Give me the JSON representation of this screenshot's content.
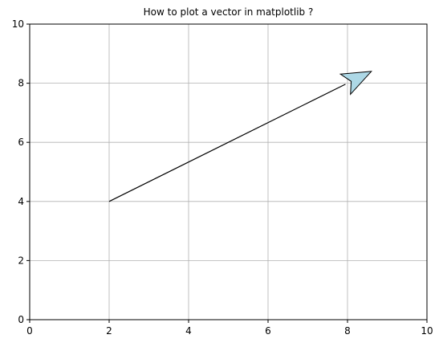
{
  "chart_data": {
    "type": "line",
    "title": "How to plot a vector in matplotlib ?",
    "xlabel": "",
    "ylabel": "",
    "xlim": [
      0,
      10
    ],
    "ylim": [
      0,
      10
    ],
    "xticks": [
      0,
      2,
      4,
      6,
      8,
      10
    ],
    "yticks": [
      0,
      2,
      4,
      6,
      8,
      10
    ],
    "grid": true,
    "vector": {
      "start": [
        2,
        4
      ],
      "end": [
        8.6,
        8.4
      ],
      "line_color": "#000000",
      "head_fill": "#add8e6",
      "head_edge": "#000000"
    }
  }
}
